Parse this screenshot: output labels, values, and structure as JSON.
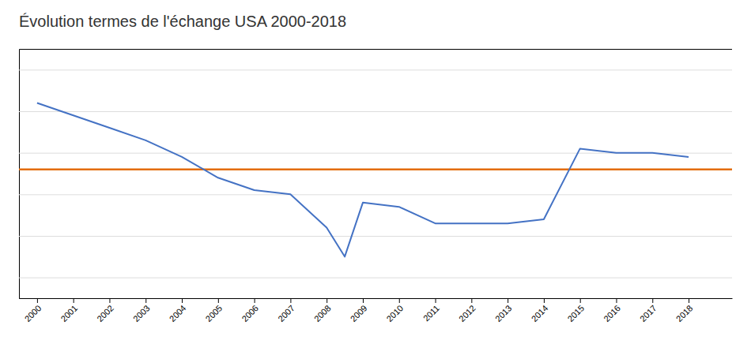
{
  "chart_data": {
    "type": "line",
    "title": "Évolution termes de l'échange USA 2000-2018",
    "x": [
      2000,
      2001,
      2002,
      2003,
      2004,
      2005,
      2006,
      2007,
      2008,
      2008.5,
      2009,
      2010,
      2011,
      2012,
      2013,
      2014,
      2015,
      2016,
      2017,
      2018
    ],
    "series": [
      {
        "color": "#4472C4",
        "values": [
          112,
          109,
          106,
          103,
          99,
          94,
          91,
          90,
          82,
          75,
          88,
          87,
          83,
          83,
          83,
          84,
          101,
          100,
          100,
          99
        ]
      }
    ],
    "reference_line": {
      "value": 96,
      "color": "#E36C09"
    },
    "xlim": [
      1999.5,
      2019.2
    ],
    "xticks": [
      2000,
      2001,
      2002,
      2003,
      2004,
      2005,
      2006,
      2007,
      2008,
      2009,
      2010,
      2011,
      2012,
      2013,
      2014,
      2015,
      2016,
      2017,
      2018
    ],
    "ylim": [
      65,
      125
    ],
    "yticks": [
      70,
      80,
      90,
      100,
      110,
      120
    ],
    "grid": true,
    "tick_labels": "x"
  }
}
